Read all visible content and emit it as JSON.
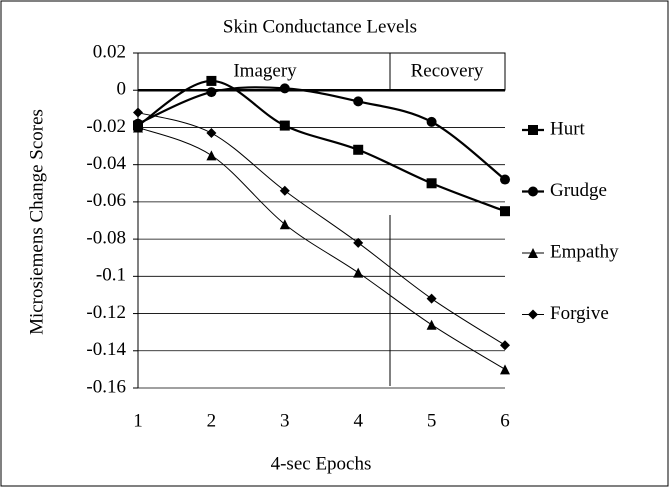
{
  "chart_data": {
    "type": "line",
    "title": "Skin Conductance Levels",
    "xlabel": "4-sec Epochs",
    "ylabel": "Microsiemens Change Scores",
    "annotations": [
      "Imagery",
      "Recovery"
    ],
    "x": [
      1,
      2,
      3,
      4,
      5,
      6
    ],
    "xlim": [
      1,
      6
    ],
    "xticks": [
      1,
      2,
      3,
      4,
      5,
      6
    ],
    "ylim": [
      -0.16,
      0.02
    ],
    "yticks": [
      0.02,
      0,
      -0.02,
      -0.04,
      -0.06,
      -0.08,
      -0.1,
      -0.12,
      -0.14,
      -0.16
    ],
    "grid": true,
    "legend": "right",
    "series": [
      {
        "name": "Hurt",
        "color": "#000000",
        "marker": "square",
        "line_width": 2.2,
        "values": [
          -0.019,
          0.005,
          -0.019,
          -0.032,
          -0.05,
          -0.065
        ]
      },
      {
        "name": "Grudge",
        "color": "#000000",
        "marker": "circle",
        "line_width": 2.2,
        "values": [
          -0.018,
          -0.001,
          0.001,
          -0.006,
          -0.017,
          -0.048
        ]
      },
      {
        "name": "Empathy",
        "color": "#000000",
        "marker": "triangle",
        "line_width": 1,
        "values": [
          -0.02,
          -0.035,
          -0.072,
          -0.098,
          -0.126,
          -0.15
        ]
      },
      {
        "name": "Forgive",
        "color": "#000000",
        "marker": "diamond",
        "line_width": 1,
        "values": [
          -0.012,
          -0.023,
          -0.054,
          -0.082,
          -0.112,
          -0.137
        ]
      }
    ]
  }
}
